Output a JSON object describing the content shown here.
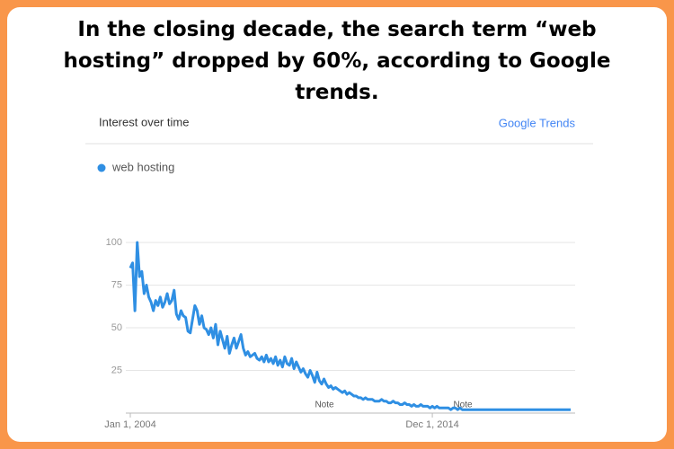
{
  "chart_data": {
    "type": "line",
    "title": "In the closing decade, the search term “web hosting” dropped by 60%, according to Google trends.",
    "panel_title": "Interest over time",
    "brand": "Google Trends",
    "annotations": [
      "Note",
      "Note"
    ],
    "categories": [
      "Jan 1, 2004",
      null,
      null,
      null,
      null,
      null,
      null,
      null,
      null,
      null,
      null,
      null,
      null,
      null,
      null,
      null,
      null,
      null,
      null,
      null,
      null,
      null,
      null,
      null,
      null,
      null,
      null,
      null,
      null,
      null,
      null,
      null,
      null,
      null,
      null,
      null,
      null,
      null,
      null,
      null,
      null,
      null,
      null,
      null,
      null,
      null,
      null,
      null,
      null,
      null,
      null,
      null,
      null,
      null,
      null,
      null,
      null,
      null,
      null,
      null,
      null,
      null,
      null,
      null,
      null,
      null,
      null,
      null,
      null,
      null,
      null,
      null,
      null,
      null,
      null,
      null,
      null,
      null,
      null,
      null,
      null,
      null,
      null,
      null,
      null,
      null,
      null,
      null,
      null,
      null,
      null,
      null,
      null,
      null,
      null,
      null,
      null,
      null,
      null,
      null,
      null,
      null,
      null,
      null,
      null,
      null,
      null,
      null,
      null,
      null,
      null,
      null,
      null,
      null,
      null,
      null,
      null,
      null,
      null,
      null,
      null,
      null,
      null,
      null,
      null,
      null,
      null,
      null,
      null,
      null,
      null,
      "Dec 1, 2014",
      null,
      null,
      null,
      null,
      null,
      null,
      null,
      null,
      null,
      null,
      null,
      null,
      null,
      null,
      null,
      null,
      null,
      null,
      null,
      null,
      null,
      null,
      null,
      null,
      null,
      null,
      null,
      null,
      null,
      null,
      null,
      null,
      null,
      null,
      null,
      null,
      null,
      null,
      null,
      null,
      null,
      null,
      null,
      null,
      null,
      null,
      null,
      null,
      null,
      null,
      null,
      null,
      null,
      null,
      null,
      null,
      null,
      null,
      null,
      null
    ],
    "series": [
      {
        "name": "web hosting",
        "color": "#2f8fe3",
        "values": [
          85,
          88,
          60,
          100,
          80,
          83,
          70,
          75,
          68,
          65,
          60,
          66,
          63,
          68,
          62,
          65,
          70,
          64,
          66,
          72,
          58,
          55,
          60,
          57,
          56,
          48,
          47,
          55,
          63,
          60,
          52,
          57,
          50,
          49,
          46,
          50,
          44,
          52,
          40,
          48,
          43,
          38,
          45,
          35,
          40,
          44,
          38,
          42,
          46,
          38,
          34,
          36,
          33,
          34,
          35,
          32,
          31,
          33,
          30,
          34,
          30,
          32,
          29,
          33,
          28,
          31,
          27,
          33,
          29,
          28,
          32,
          26,
          30,
          27,
          24,
          26,
          23,
          21,
          25,
          22,
          18,
          24,
          19,
          17,
          20,
          17,
          15,
          16,
          14,
          15,
          14,
          13,
          12,
          13,
          11,
          12,
          11,
          10,
          10,
          9,
          9,
          8,
          9,
          8,
          8,
          8,
          7,
          7,
          7,
          8,
          7,
          7,
          6,
          6,
          7,
          6,
          6,
          5,
          5,
          6,
          5,
          5,
          4,
          5,
          4,
          4,
          5,
          4,
          4,
          4,
          3,
          4,
          3,
          4,
          3,
          3,
          3,
          3,
          3,
          2,
          3,
          3,
          2,
          3,
          2,
          2,
          2,
          2,
          2,
          2,
          2,
          2,
          2,
          2,
          2,
          2,
          2,
          2,
          2,
          2,
          2,
          2,
          2,
          2,
          2,
          2,
          2,
          2,
          2,
          2,
          2,
          2,
          2,
          2,
          2,
          2,
          2,
          2,
          2,
          2,
          2,
          2,
          2,
          2,
          2,
          2,
          2,
          2,
          2,
          2,
          2,
          2
        ]
      }
    ],
    "ylim": [
      0,
      100
    ],
    "yticks": [
      25,
      50,
      75,
      100
    ],
    "grid": true
  }
}
